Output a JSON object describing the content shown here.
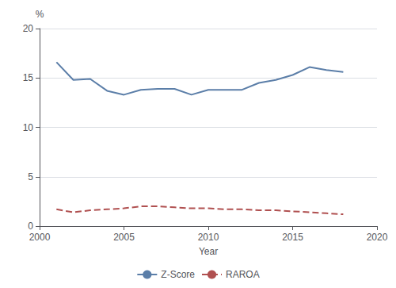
{
  "chart_data": {
    "type": "line",
    "x": [
      2001,
      2002,
      2003,
      2004,
      2005,
      2006,
      2007,
      2008,
      2009,
      2010,
      2011,
      2012,
      2013,
      2014,
      2015,
      2016,
      2017,
      2018
    ],
    "series": [
      {
        "name": "Z-Score",
        "color": "#5b7ea8",
        "line_style": "solid",
        "values": [
          16.6,
          14.8,
          14.9,
          13.7,
          13.3,
          13.8,
          13.9,
          13.9,
          13.3,
          13.8,
          13.8,
          13.8,
          14.5,
          14.8,
          15.3,
          16.1,
          15.8,
          15.6
        ]
      },
      {
        "name": "RAROA",
        "color": "#b05050",
        "line_style": "dashed",
        "values": [
          1.7,
          1.4,
          1.6,
          1.7,
          1.8,
          2.0,
          2.0,
          1.9,
          1.8,
          1.8,
          1.7,
          1.7,
          1.6,
          1.6,
          1.5,
          1.4,
          1.3,
          1.2
        ]
      }
    ],
    "xlabel": "Year",
    "ylabel": "%",
    "xlim": [
      2000,
      2020
    ],
    "xticks": [
      2000,
      2005,
      2010,
      2015,
      2020
    ],
    "ylim": [
      0,
      20
    ],
    "yticks": [
      0,
      5,
      10,
      15,
      20
    ],
    "grid": "y",
    "legend": "bottom"
  }
}
